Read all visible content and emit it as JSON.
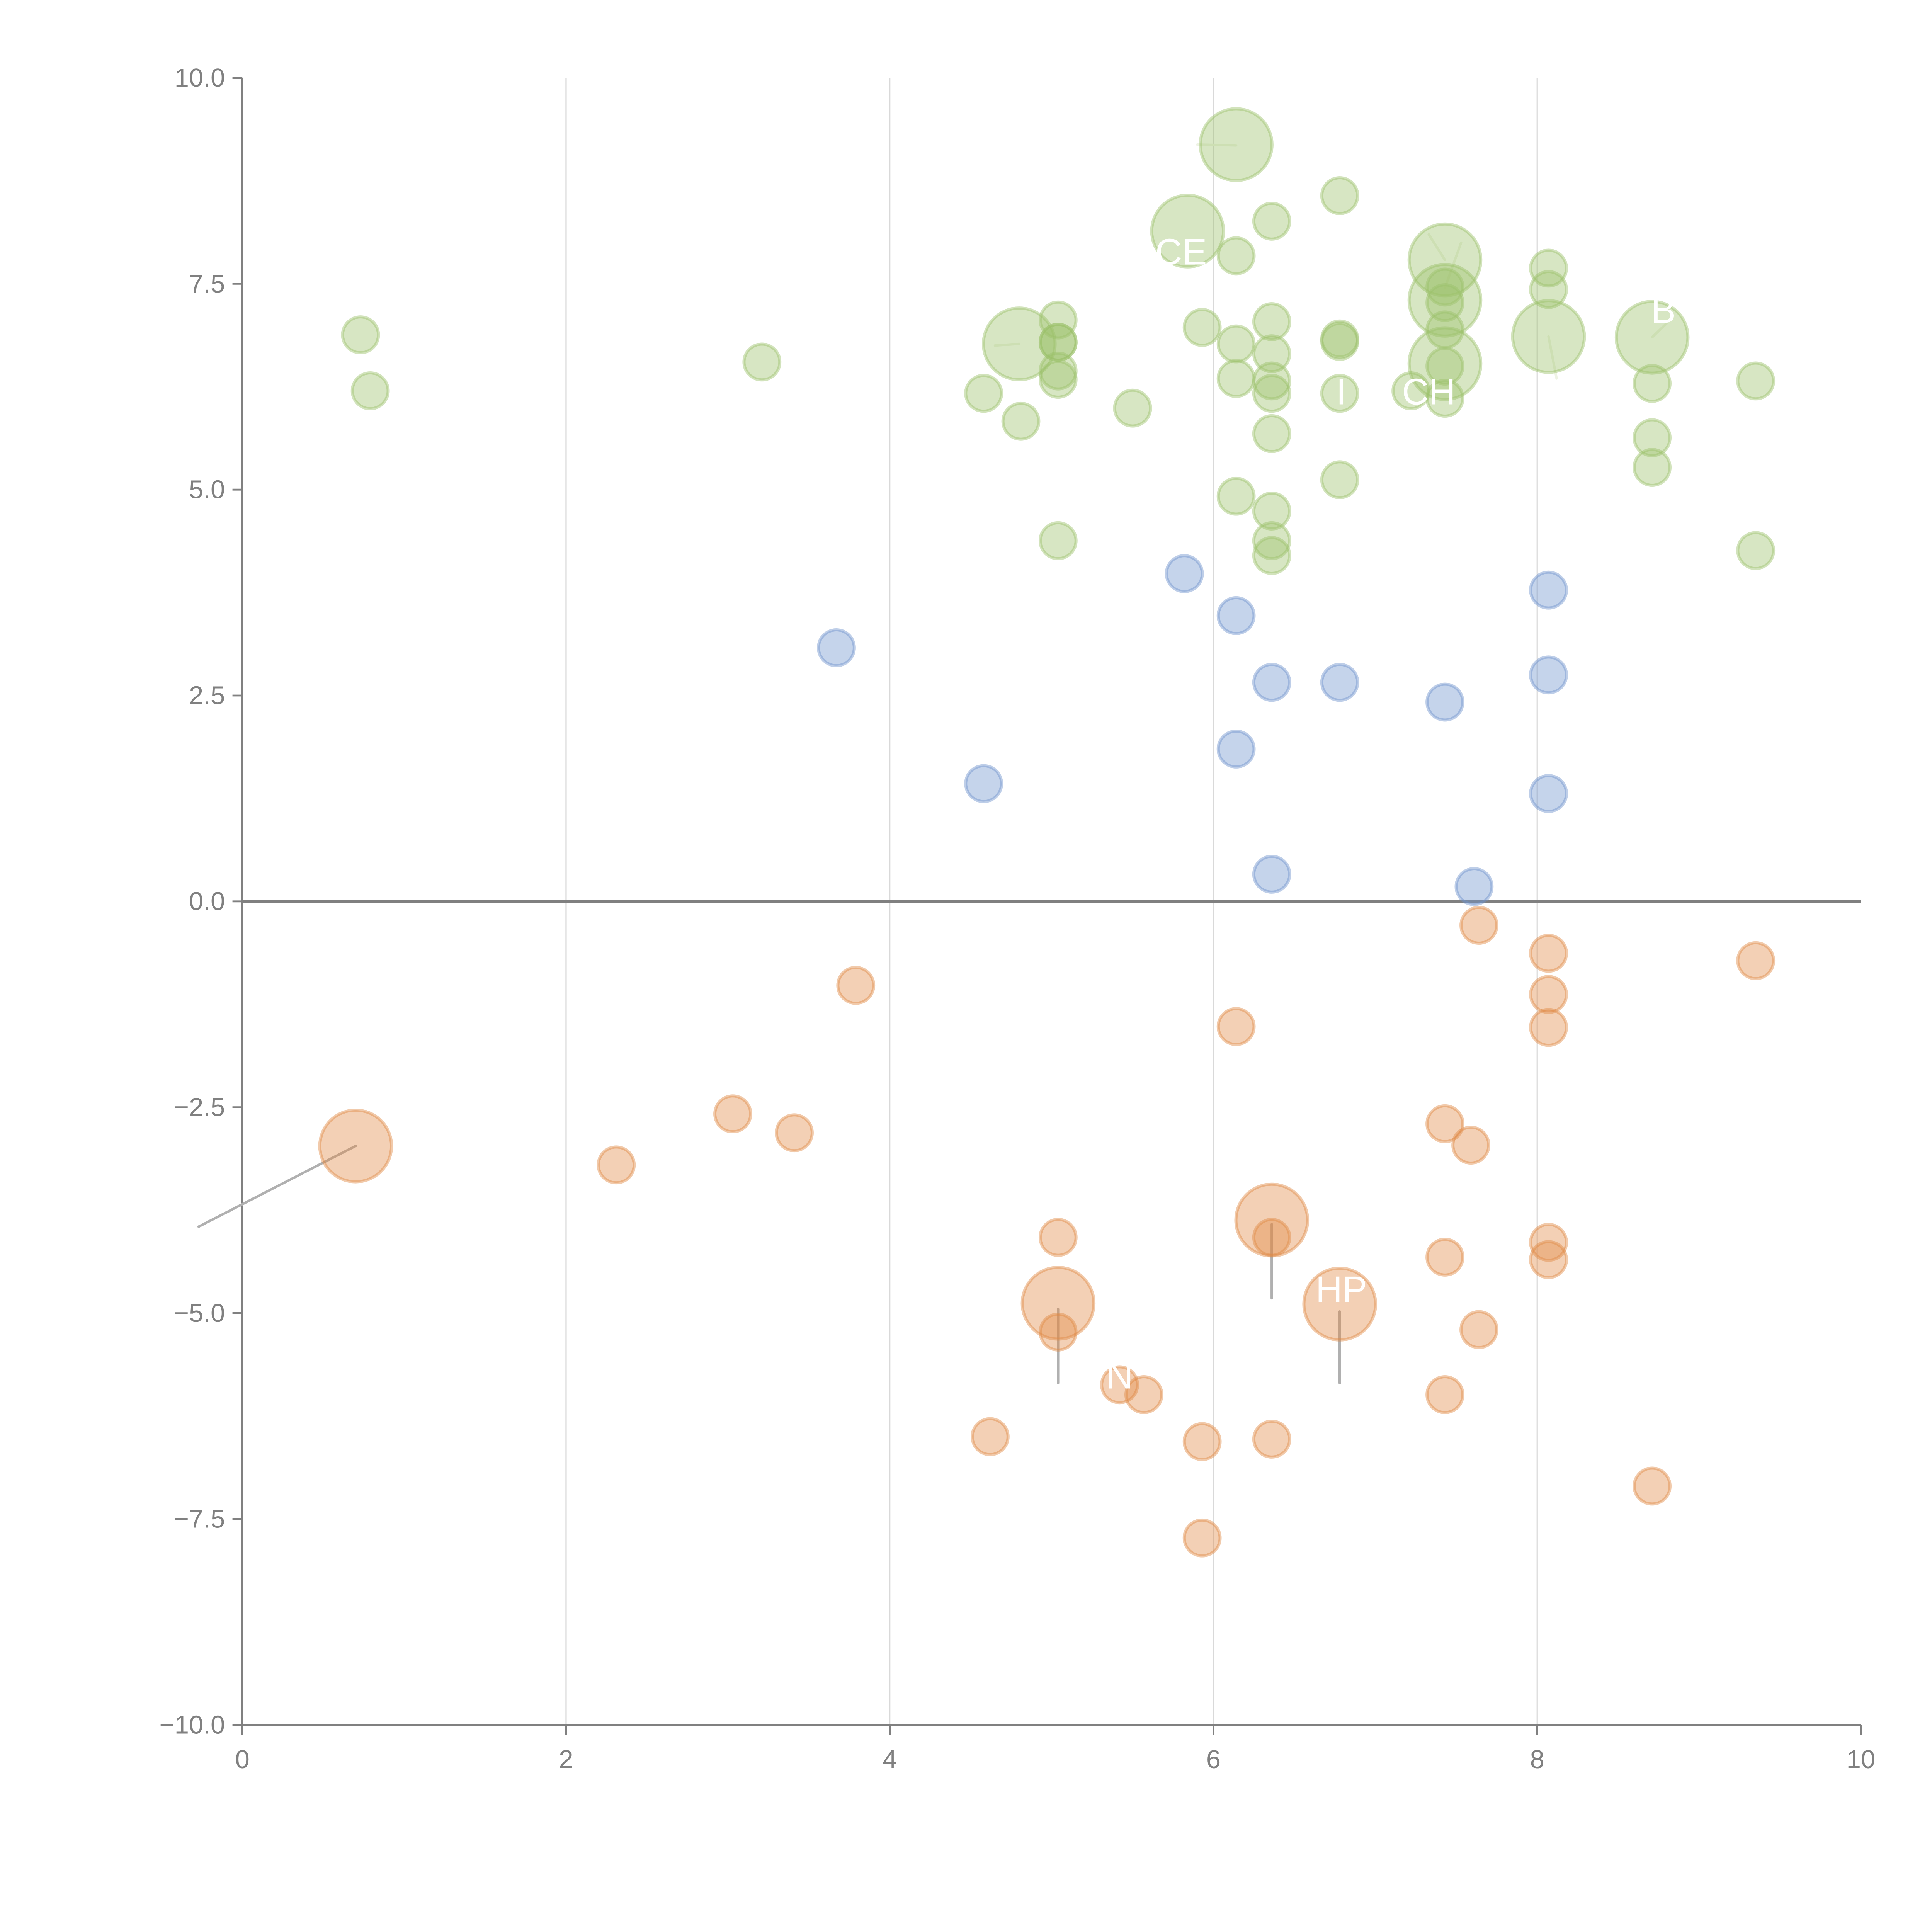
{
  "chart_data": {
    "type": "scatter",
    "title": "",
    "xlabel": "",
    "ylabel": "",
    "xlim": [
      0,
      10
    ],
    "ylim": [
      -10,
      10
    ],
    "xticks": [
      "0",
      "2",
      "4",
      "6",
      "8",
      "10"
    ],
    "yticks": [
      "10.0",
      "7.5",
      "5.0",
      "2.5",
      "0.0",
      "−2.5",
      "−5.0",
      "−7.5",
      "−10.0"
    ],
    "grid": "vertical",
    "colors": {
      "green": "#9cc06a",
      "blue": "#6f93cc",
      "orange": "#e08a45",
      "axis": "#808080",
      "grid": "#d9d9d9"
    },
    "series": [
      {
        "name": "green",
        "color": "#9cc06a",
        "points": [
          [
            0.73,
            6.88,
            1
          ],
          [
            0.79,
            6.2,
            1
          ],
          [
            3.21,
            6.55,
            1
          ],
          [
            4.58,
            6.17,
            1
          ],
          [
            4.81,
            5.83,
            1
          ],
          [
            4.8,
            6.77,
            4
          ],
          [
            5.04,
            7.06,
            1
          ],
          [
            5.04,
            6.79,
            1
          ],
          [
            5.04,
            6.79,
            1
          ],
          [
            5.04,
            6.44,
            1
          ],
          [
            5.04,
            6.34,
            1
          ],
          [
            5.04,
            4.38,
            1
          ],
          [
            5.5,
            5.99,
            1
          ],
          [
            5.84,
            8.14,
            4
          ],
          [
            5.93,
            6.97,
            1
          ],
          [
            6.14,
            9.19,
            4
          ],
          [
            6.14,
            7.84,
            1
          ],
          [
            6.14,
            6.77,
            1
          ],
          [
            6.14,
            6.35,
            1
          ],
          [
            6.14,
            4.92,
            1
          ],
          [
            6.36,
            8.26,
            1
          ],
          [
            6.36,
            7.04,
            1
          ],
          [
            6.36,
            6.65,
            1
          ],
          [
            6.36,
            6.32,
            1
          ],
          [
            6.36,
            6.17,
            1
          ],
          [
            6.36,
            5.68,
            1
          ],
          [
            6.36,
            4.74,
            1
          ],
          [
            6.36,
            4.38,
            1
          ],
          [
            6.36,
            4.2,
            1
          ],
          [
            6.78,
            8.57,
            1
          ],
          [
            6.78,
            6.83,
            1
          ],
          [
            6.78,
            6.8,
            1
          ],
          [
            6.78,
            6.17,
            1
          ],
          [
            6.78,
            5.12,
            1
          ],
          [
            7.43,
            7.79,
            4
          ],
          [
            7.43,
            7.3,
            4
          ],
          [
            7.43,
            7.46,
            1
          ],
          [
            7.43,
            7.27,
            1
          ],
          [
            7.43,
            6.94,
            1
          ],
          [
            7.43,
            6.53,
            4
          ],
          [
            7.43,
            6.5,
            1
          ],
          [
            7.43,
            6.11,
            1
          ],
          [
            7.22,
            6.2,
            1
          ],
          [
            8.07,
            7.69,
            1
          ],
          [
            8.07,
            7.43,
            1
          ],
          [
            8.07,
            6.86,
            4
          ],
          [
            8.71,
            6.85,
            4
          ],
          [
            8.71,
            6.29,
            1
          ],
          [
            8.71,
            5.63,
            1
          ],
          [
            8.71,
            5.27,
            1
          ],
          [
            9.35,
            6.32,
            1
          ],
          [
            9.35,
            4.26,
            1
          ]
        ]
      },
      {
        "name": "blue",
        "color": "#6f93cc",
        "points": [
          [
            3.67,
            3.08,
            1
          ],
          [
            4.58,
            1.43,
            1
          ],
          [
            5.82,
            3.98,
            1
          ],
          [
            6.14,
            3.47,
            1
          ],
          [
            6.14,
            1.85,
            1
          ],
          [
            6.36,
            2.66,
            1
          ],
          [
            6.36,
            0.33,
            1
          ],
          [
            6.78,
            2.66,
            1
          ],
          [
            7.43,
            2.42,
            1
          ],
          [
            7.61,
            0.18,
            1
          ],
          [
            8.07,
            3.78,
            1
          ],
          [
            8.07,
            2.75,
            1
          ],
          [
            8.07,
            1.31,
            1
          ]
        ]
      },
      {
        "name": "orange",
        "color": "#e08a45",
        "points": [
          [
            0.7,
            -2.97,
            4
          ],
          [
            2.31,
            -3.2,
            1
          ],
          [
            3.03,
            -2.58,
            1
          ],
          [
            3.41,
            -2.81,
            1
          ],
          [
            3.79,
            -1.02,
            1
          ],
          [
            4.62,
            -6.5,
            1
          ],
          [
            5.04,
            -4.08,
            1
          ],
          [
            5.04,
            -4.88,
            4
          ],
          [
            5.04,
            -5.23,
            1
          ],
          [
            5.42,
            -5.87,
            1
          ],
          [
            5.57,
            -5.99,
            1
          ],
          [
            5.93,
            -6.56,
            1
          ],
          [
            5.93,
            -7.73,
            1
          ],
          [
            6.14,
            -1.52,
            1
          ],
          [
            6.36,
            -3.87,
            4
          ],
          [
            6.36,
            -4.08,
            1
          ],
          [
            6.36,
            -6.53,
            1
          ],
          [
            6.78,
            -4.89,
            4
          ],
          [
            7.43,
            -2.7,
            1
          ],
          [
            7.43,
            -4.32,
            1
          ],
          [
            7.43,
            -5.99,
            1
          ],
          [
            7.59,
            -2.96,
            1
          ],
          [
            7.64,
            -0.29,
            1
          ],
          [
            7.64,
            -5.2,
            1
          ],
          [
            8.07,
            -0.63,
            1
          ],
          [
            8.07,
            -1.13,
            1
          ],
          [
            8.07,
            -1.53,
            1
          ],
          [
            8.07,
            -4.14,
            1
          ],
          [
            8.07,
            -4.35,
            1
          ],
          [
            8.71,
            -7.1,
            1
          ],
          [
            9.35,
            -0.72,
            1
          ]
        ]
      }
    ],
    "annotations": [
      {
        "text": "CE",
        "x": 5.8,
        "y": 7.9
      },
      {
        "text": "B",
        "x": 8.78,
        "y": 7.19
      },
      {
        "text": "I",
        "x": 6.79,
        "y": 6.2
      },
      {
        "text": "CH",
        "x": 7.33,
        "y": 6.2
      },
      {
        "text": "HP",
        "x": 6.79,
        "y": -4.7
      },
      {
        "text": "N",
        "x": 5.42,
        "y": -5.75
      }
    ],
    "leader_lines": [
      {
        "from": [
          0.7,
          -2.97
        ],
        "to": [
          -0.27,
          -3.95
        ],
        "color": "#b0b0b0"
      },
      {
        "from": [
          5.04,
          -4.95
        ],
        "to": [
          5.04,
          -5.85
        ],
        "color": "#b0b0b0"
      },
      {
        "from": [
          6.36,
          -3.92
        ],
        "to": [
          6.36,
          -4.82
        ],
        "color": "#b0b0b0"
      },
      {
        "from": [
          6.78,
          -4.98
        ],
        "to": [
          6.78,
          -5.85
        ],
        "color": "#b0b0b0"
      },
      {
        "from": [
          6.14,
          9.18
        ],
        "to": [
          5.9,
          9.19
        ],
        "color": "#eef3e4"
      },
      {
        "from": [
          4.8,
          6.77
        ],
        "to": [
          4.65,
          6.75
        ],
        "color": "#eef3e4"
      },
      {
        "from": [
          7.43,
          7.45
        ],
        "to": [
          7.53,
          8.0
        ],
        "color": "#eef3e4"
      },
      {
        "from": [
          7.43,
          7.79
        ],
        "to": [
          7.33,
          8.1
        ],
        "color": "#eef3e4"
      },
      {
        "from": [
          8.07,
          6.86
        ],
        "to": [
          8.12,
          6.35
        ],
        "color": "#eef3e4"
      },
      {
        "from": [
          8.71,
          6.85
        ],
        "to": [
          8.8,
          7.02
        ],
        "color": "#eef3e4"
      }
    ]
  }
}
